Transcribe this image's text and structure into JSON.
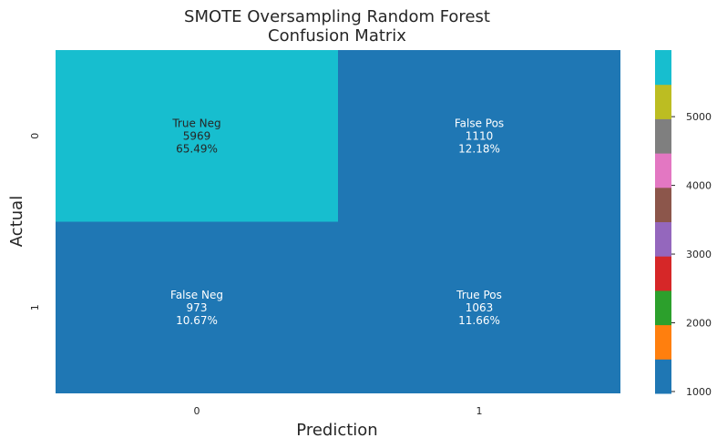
{
  "chart_data": {
    "type": "heatmap",
    "title": "SMOTE Oversampling Random Forest\nConfusion Matrix",
    "xlabel": "Prediction",
    "ylabel": "Actual",
    "x_categories": [
      "0",
      "1"
    ],
    "y_categories": [
      "0",
      "1"
    ],
    "cells": [
      [
        {
          "group": "True Neg",
          "count": 5969,
          "percent": "65.49%"
        },
        {
          "group": "False Pos",
          "count": 1110,
          "percent": "12.18%"
        }
      ],
      [
        {
          "group": "False Neg",
          "count": 973,
          "percent": "10.67%"
        },
        {
          "group": "True Pos",
          "count": 1063,
          "percent": "11.66%"
        }
      ]
    ],
    "colormap": {
      "name": "tab10",
      "range": [
        973,
        5969
      ],
      "colors": [
        "#1f77b4",
        "#ff7f0e",
        "#2ca02c",
        "#d62728",
        "#9467bd",
        "#8c564b",
        "#e377c2",
        "#7f7f7f",
        "#bcbd22",
        "#17becf"
      ]
    },
    "colorbar_ticks": [
      1000,
      2000,
      3000,
      4000,
      5000
    ],
    "grid": false,
    "legend": "colorbar-right"
  }
}
